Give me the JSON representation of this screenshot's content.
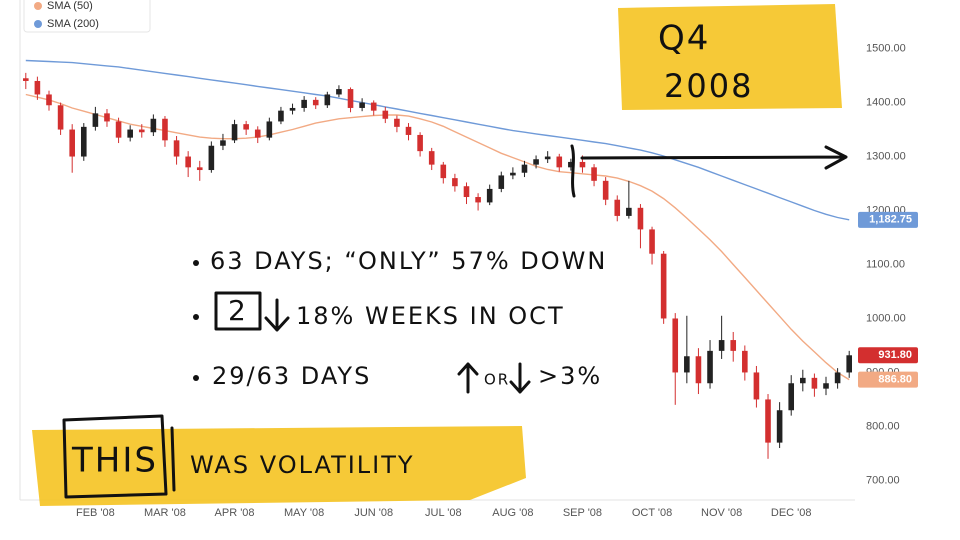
{
  "chart_data": {
    "type": "candlestick",
    "categories": [
      null,
      null,
      null,
      null,
      null,
      null,
      "FEB '08",
      null,
      null,
      null,
      null,
      null,
      "MAR '08",
      null,
      null,
      null,
      null,
      null,
      "APR '08",
      null,
      null,
      null,
      null,
      null,
      "MAY '08",
      null,
      null,
      null,
      null,
      null,
      "JUN '08",
      null,
      null,
      null,
      null,
      null,
      "JUL '08",
      null,
      null,
      null,
      null,
      null,
      "AUG '08",
      null,
      null,
      null,
      null,
      null,
      "SEP '08",
      null,
      null,
      null,
      null,
      null,
      "OCT '08",
      null,
      null,
      null,
      null,
      null,
      "NOV '08",
      null,
      null,
      null,
      null,
      null,
      "DEC '08",
      null,
      null,
      null,
      null,
      null
    ],
    "open": [
      1445,
      1440,
      1415,
      1395,
      1350,
      1300,
      1355,
      1380,
      1365,
      1335,
      1350,
      1345,
      1370,
      1330,
      1300,
      1280,
      1275,
      1320,
      1330,
      1360,
      1350,
      1335,
      1365,
      1385,
      1390,
      1405,
      1395,
      1415,
      1425,
      1390,
      1400,
      1385,
      1370,
      1355,
      1340,
      1310,
      1285,
      1260,
      1245,
      1225,
      1215,
      1240,
      1265,
      1270,
      1285,
      1295,
      1300,
      1280,
      1290,
      1280,
      1255,
      1220,
      1190,
      1205,
      1165,
      1120,
      1000,
      900,
      930,
      880,
      940,
      960,
      940,
      900,
      850,
      770,
      830,
      880,
      890,
      870,
      880,
      900
    ],
    "high": [
      1455,
      1448,
      1422,
      1400,
      1360,
      1362,
      1392,
      1388,
      1372,
      1358,
      1360,
      1378,
      1375,
      1338,
      1310,
      1292,
      1328,
      1342,
      1368,
      1366,
      1356,
      1372,
      1392,
      1398,
      1412,
      1410,
      1420,
      1432,
      1428,
      1408,
      1404,
      1392,
      1376,
      1362,
      1345,
      1316,
      1290,
      1268,
      1252,
      1232,
      1248,
      1272,
      1280,
      1292,
      1302,
      1310,
      1305,
      1296,
      1302,
      1286,
      1262,
      1228,
      1255,
      1212,
      1170,
      1125,
      1010,
      1005,
      945,
      960,
      1005,
      975,
      950,
      912,
      860,
      845,
      895,
      905,
      898,
      892,
      908,
      940
    ],
    "low": [
      1425,
      1405,
      1385,
      1340,
      1270,
      1292,
      1348,
      1355,
      1325,
      1328,
      1335,
      1338,
      1318,
      1285,
      1262,
      1255,
      1270,
      1312,
      1325,
      1340,
      1325,
      1330,
      1360,
      1378,
      1383,
      1388,
      1390,
      1410,
      1382,
      1384,
      1376,
      1362,
      1345,
      1330,
      1300,
      1275,
      1250,
      1235,
      1212,
      1200,
      1210,
      1234,
      1258,
      1262,
      1278,
      1288,
      1272,
      1274,
      1270,
      1245,
      1210,
      1180,
      1185,
      1130,
      1100,
      990,
      840,
      880,
      860,
      870,
      925,
      920,
      885,
      835,
      740,
      760,
      820,
      865,
      855,
      858,
      870,
      890
    ],
    "close": [
      1440,
      1415,
      1395,
      1350,
      1300,
      1355,
      1380,
      1365,
      1335,
      1350,
      1345,
      1370,
      1330,
      1300,
      1280,
      1275,
      1320,
      1330,
      1360,
      1350,
      1335,
      1365,
      1385,
      1390,
      1405,
      1395,
      1415,
      1425,
      1390,
      1400,
      1385,
      1370,
      1355,
      1340,
      1310,
      1285,
      1260,
      1245,
      1225,
      1215,
      1240,
      1265,
      1270,
      1285,
      1295,
      1300,
      1280,
      1290,
      1280,
      1255,
      1220,
      1190,
      1205,
      1165,
      1120,
      1000,
      900,
      930,
      880,
      940,
      960,
      940,
      900,
      850,
      770,
      830,
      880,
      890,
      870,
      880,
      900,
      931.8
    ],
    "up_color": "#222222",
    "down_color": "#d32f2f",
    "series": [
      {
        "name": "SMA (50)",
        "color": "#f2aa84",
        "values": [
          1415,
          1410,
          1405,
          1398,
          1390,
          1384,
          1378,
          1372,
          1366,
          1360,
          1356,
          1352,
          1348,
          1344,
          1340,
          1336,
          1334,
          1333,
          1333,
          1334,
          1336,
          1340,
          1345,
          1350,
          1356,
          1362,
          1366,
          1370,
          1372,
          1374,
          1376,
          1377,
          1377,
          1375,
          1370,
          1364,
          1356,
          1346,
          1336,
          1326,
          1316,
          1306,
          1298,
          1290,
          1282,
          1276,
          1272,
          1270,
          1268,
          1266,
          1264,
          1260,
          1254,
          1246,
          1236,
          1222,
          1205,
          1186,
          1166,
          1146,
          1124,
          1100,
          1076,
          1052,
          1028,
          1004,
          980,
          958,
          938,
          918,
          900,
          886.8
        ]
      },
      {
        "name": "SMA (200)",
        "color": "#6f9ad8",
        "values": [
          1478,
          1477,
          1476,
          1475,
          1474,
          1472,
          1470,
          1468,
          1466,
          1463,
          1460,
          1457,
          1454,
          1451,
          1448,
          1445,
          1442,
          1439,
          1436,
          1433,
          1430,
          1427,
          1424,
          1421,
          1418,
          1415,
          1412,
          1408,
          1404,
          1400,
          1396,
          1392,
          1388,
          1384,
          1380,
          1376,
          1372,
          1368,
          1364,
          1360,
          1356,
          1352,
          1348,
          1345,
          1342,
          1339,
          1336,
          1333,
          1330,
          1327,
          1324,
          1320,
          1316,
          1312,
          1307,
          1301,
          1294,
          1287,
          1280,
          1272,
          1264,
          1256,
          1248,
          1240,
          1232,
          1224,
          1216,
          1208,
          1200,
          1193,
          1187,
          1182.75
        ]
      }
    ],
    "ylim": [
      660,
      1590
    ],
    "yticks": [
      {
        "value": 700,
        "label": "700.00"
      },
      {
        "value": 800,
        "label": "800.00"
      },
      {
        "value": 900,
        "label": "900.00"
      },
      {
        "value": 1000,
        "label": "1000.00"
      },
      {
        "value": 1100,
        "label": "1100.00"
      },
      {
        "value": 1200,
        "label": "1200.00"
      },
      {
        "value": 1300,
        "label": "1300.00"
      },
      {
        "value": 1400,
        "label": "1400.00"
      },
      {
        "value": 1500,
        "label": "1500.00"
      }
    ],
    "grid": false,
    "price_tags": [
      {
        "value": 1182.75,
        "label": "1,182.75",
        "color": "#6f9ad8"
      },
      {
        "value": 931.8,
        "label": "931.80",
        "color": "#d32f2f"
      },
      {
        "value": 886.8,
        "label": "886.80",
        "color": "#f2aa84"
      }
    ],
    "annotations": {
      "q4": "Q4",
      "year": "2008",
      "bullet1": "63 DAYS; “ONLY” 57% DOWN",
      "bullet2_num": "2",
      "bullet2": "18% WEEKS IN OCT",
      "bullet3": "29/63 DAYS",
      "bullet3_or": "OR",
      "bullet3_pct": ">3%",
      "this": "THIS",
      "was": "WAS VOLATILITY"
    }
  }
}
